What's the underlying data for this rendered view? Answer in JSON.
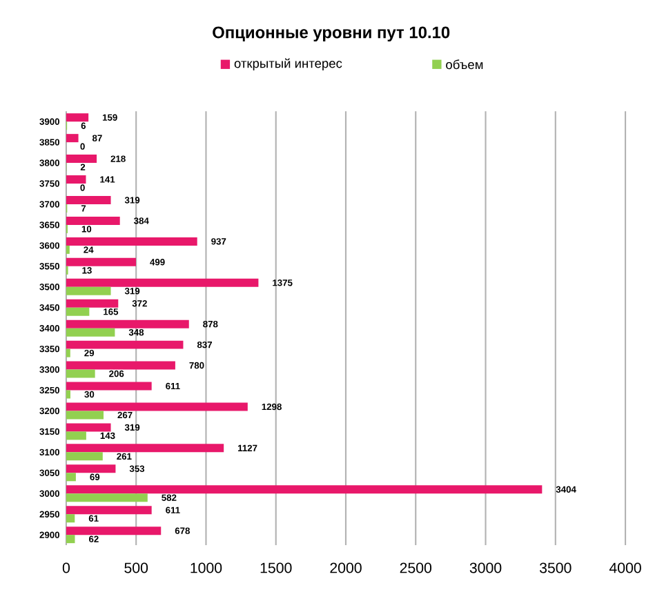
{
  "chart_data": {
    "type": "bar",
    "orientation": "horizontal",
    "title": "Опционные уровни пут 10.10",
    "categories": [
      "3900",
      "3850",
      "3800",
      "3750",
      "3700",
      "3650",
      "3600",
      "3550",
      "3500",
      "3450",
      "3400",
      "3350",
      "3300",
      "3250",
      "3200",
      "3150",
      "3100",
      "3050",
      "3000",
      "2950",
      "2900"
    ],
    "series": [
      {
        "name": "открытый интерес",
        "color": "#e8186a",
        "values": [
          159,
          87,
          218,
          141,
          319,
          384,
          937,
          499,
          1375,
          372,
          878,
          837,
          780,
          611,
          1298,
          319,
          1127,
          353,
          3404,
          611,
          678
        ]
      },
      {
        "name": "объем",
        "color": "#92d050",
        "values": [
          6,
          0,
          2,
          0,
          7,
          10,
          24,
          13,
          319,
          165,
          348,
          29,
          206,
          30,
          267,
          143,
          261,
          69,
          582,
          61,
          62
        ]
      }
    ],
    "xlim": [
      0,
      4000
    ],
    "xticks": [
      0,
      500,
      1000,
      1500,
      2000,
      2500,
      3000,
      3500,
      4000
    ],
    "grid": "x",
    "legend": "top",
    "data_labels": true
  }
}
